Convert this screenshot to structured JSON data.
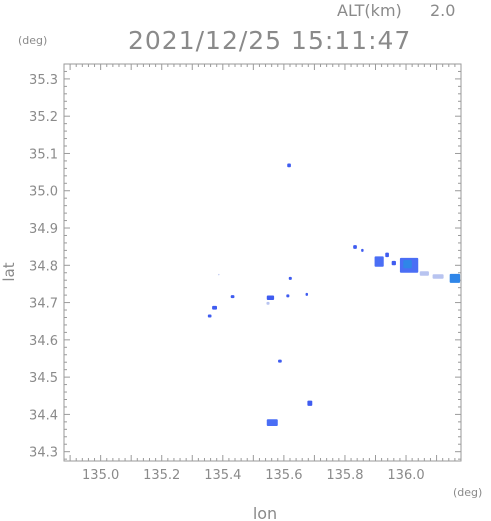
{
  "header": {
    "alt_label": "ALT(km)",
    "alt_value": "2.0",
    "timestamp": "2021/12/25 15:11:47",
    "y_unit": "(deg)",
    "x_unit": "(deg)"
  },
  "chart_data": {
    "type": "scatter",
    "xlabel": "lon",
    "ylabel": "lat",
    "xlim": [
      134.88,
      136.18
    ],
    "ylim": [
      34.275,
      35.34
    ],
    "grid": false,
    "x_ticks": [
      135.0,
      135.2,
      135.4,
      135.6,
      135.8,
      136.0
    ],
    "x_tick_labels": [
      "135.0",
      "135.2",
      "135.4",
      "135.6",
      "135.8",
      "136.0"
    ],
    "y_ticks": [
      34.3,
      34.4,
      34.5,
      34.6,
      34.7,
      34.8,
      34.9,
      35.0,
      35.1,
      35.2,
      35.3
    ],
    "y_tick_labels": [
      "34.3",
      "34.4",
      "34.5",
      "34.6",
      "34.7",
      "34.8",
      "34.9",
      "35.0",
      "35.1",
      "35.2",
      "35.3"
    ],
    "colors": {
      "echo_weak": "#3f5cf0",
      "echo_mid": "#4a6ef5",
      "echo_strong": "#2f86e8",
      "faint": "#b8c4f0"
    },
    "echoes": [
      {
        "lon": 135.617,
        "lat": 35.068,
        "w": 0.012,
        "h": 0.01,
        "level": "weak"
      },
      {
        "lon": 135.357,
        "lat": 34.664,
        "w": 0.012,
        "h": 0.008,
        "level": "weak"
      },
      {
        "lon": 135.373,
        "lat": 34.686,
        "w": 0.016,
        "h": 0.01,
        "level": "weak"
      },
      {
        "lon": 135.432,
        "lat": 34.716,
        "w": 0.012,
        "h": 0.008,
        "level": "weak"
      },
      {
        "lon": 135.556,
        "lat": 34.713,
        "w": 0.024,
        "h": 0.012,
        "level": "weak"
      },
      {
        "lon": 135.548,
        "lat": 34.698,
        "w": 0.01,
        "h": 0.008,
        "level": "faint"
      },
      {
        "lon": 135.613,
        "lat": 34.718,
        "w": 0.01,
        "h": 0.008,
        "level": "weak"
      },
      {
        "lon": 135.621,
        "lat": 34.765,
        "w": 0.01,
        "h": 0.008,
        "level": "weak"
      },
      {
        "lon": 135.675,
        "lat": 34.722,
        "w": 0.008,
        "h": 0.008,
        "level": "weak"
      },
      {
        "lon": 135.587,
        "lat": 34.543,
        "w": 0.012,
        "h": 0.008,
        "level": "weak"
      },
      {
        "lon": 135.685,
        "lat": 34.43,
        "w": 0.016,
        "h": 0.014,
        "level": "weak"
      },
      {
        "lon": 135.562,
        "lat": 34.378,
        "w": 0.036,
        "h": 0.018,
        "level": "mid"
      },
      {
        "lon": 135.833,
        "lat": 34.849,
        "w": 0.012,
        "h": 0.01,
        "level": "weak"
      },
      {
        "lon": 135.857,
        "lat": 34.84,
        "w": 0.008,
        "h": 0.008,
        "level": "weak"
      },
      {
        "lon": 135.912,
        "lat": 34.81,
        "w": 0.03,
        "h": 0.028,
        "level": "mid"
      },
      {
        "lon": 135.938,
        "lat": 34.828,
        "w": 0.012,
        "h": 0.012,
        "level": "weak"
      },
      {
        "lon": 135.96,
        "lat": 34.806,
        "w": 0.014,
        "h": 0.012,
        "level": "weak"
      },
      {
        "lon": 136.01,
        "lat": 34.8,
        "w": 0.06,
        "h": 0.04,
        "level": "mid"
      },
      {
        "lon": 136.005,
        "lat": 34.803,
        "w": 0.028,
        "h": 0.022,
        "level": "strong"
      },
      {
        "lon": 136.06,
        "lat": 34.778,
        "w": 0.03,
        "h": 0.012,
        "level": "faint"
      },
      {
        "lon": 136.105,
        "lat": 34.77,
        "w": 0.036,
        "h": 0.012,
        "level": "faint"
      },
      {
        "lon": 136.16,
        "lat": 34.765,
        "w": 0.034,
        "h": 0.024,
        "level": "strong"
      },
      {
        "lon": 135.387,
        "lat": 34.775,
        "w": 0.004,
        "h": 0.004,
        "level": "faint"
      }
    ]
  }
}
